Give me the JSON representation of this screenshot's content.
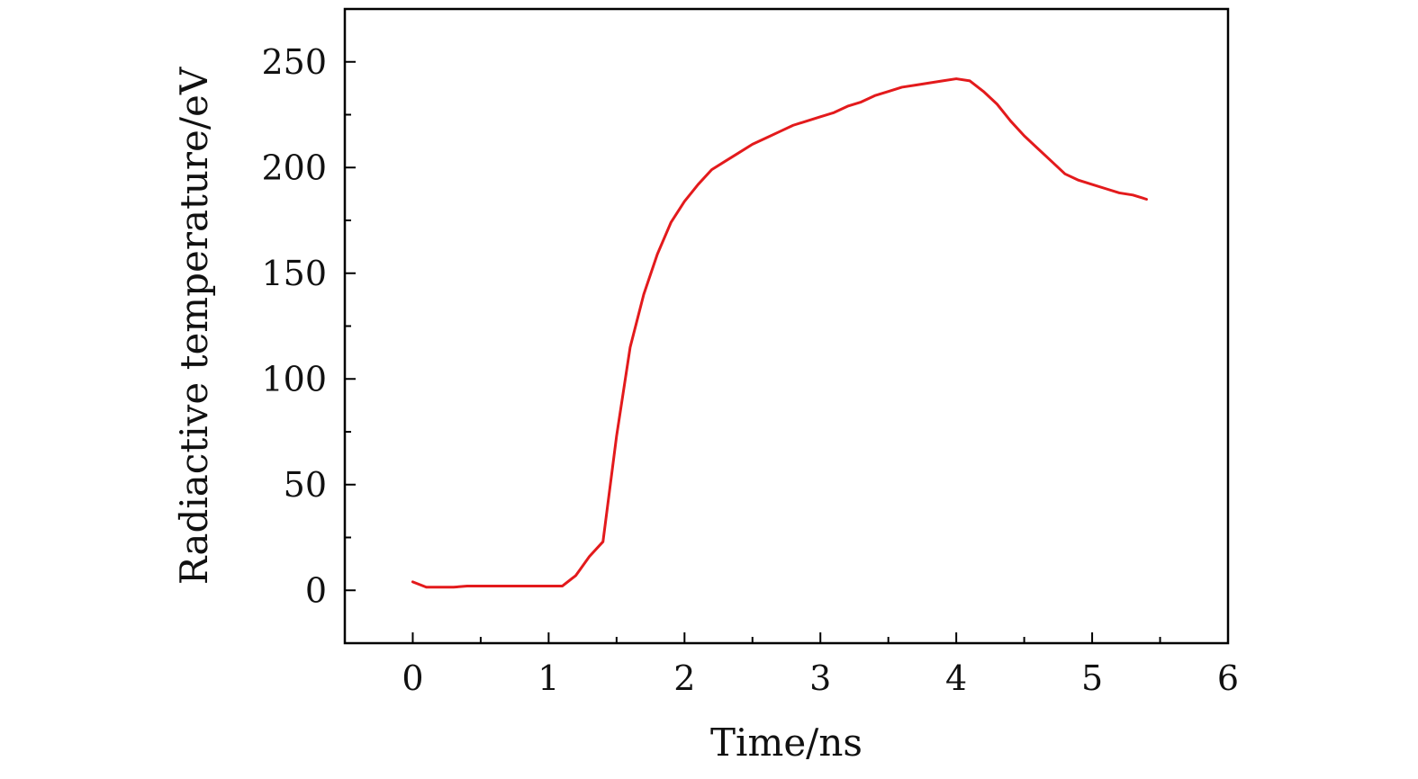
{
  "chart_data": {
    "type": "line",
    "title": "",
    "xlabel": "Time/ns",
    "ylabel": "Radiactive temperature/eV",
    "xlim": [
      -0.5,
      6
    ],
    "ylim": [
      -25,
      275
    ],
    "x_ticks": [
      0,
      1,
      2,
      3,
      4,
      5,
      6
    ],
    "y_ticks": [
      0,
      50,
      100,
      150,
      200,
      250
    ],
    "grid": false,
    "legend": "none",
    "series": [
      {
        "color": "#e31a1c",
        "x": [
          0,
          0.1,
          0.2,
          0.3,
          0.4,
          0.5,
          0.6,
          0.7,
          0.8,
          0.9,
          1.0,
          1.1,
          1.2,
          1.3,
          1.4,
          1.5,
          1.6,
          1.7,
          1.8,
          1.9,
          2.0,
          2.1,
          2.2,
          2.3,
          2.4,
          2.5,
          2.6,
          2.7,
          2.8,
          2.9,
          3.0,
          3.1,
          3.2,
          3.3,
          3.4,
          3.5,
          3.6,
          3.7,
          3.8,
          3.9,
          4.0,
          4.1,
          4.2,
          4.3,
          4.4,
          4.5,
          4.6,
          4.7,
          4.8,
          4.9,
          5.0,
          5.1,
          5.2,
          5.3,
          5.4
        ],
        "y": [
          4,
          1.5,
          1.5,
          1.5,
          2,
          2,
          2,
          2,
          2,
          2,
          2,
          2,
          7,
          16,
          23,
          73,
          115,
          140,
          159,
          174,
          184,
          192,
          199,
          203,
          207,
          211,
          214,
          217,
          220,
          222,
          224,
          226,
          229,
          231,
          234,
          236,
          238,
          239,
          240,
          241,
          242,
          241,
          236,
          230,
          222,
          215,
          209,
          203,
          197,
          194,
          192,
          190,
          188,
          187,
          185
        ]
      }
    ]
  }
}
